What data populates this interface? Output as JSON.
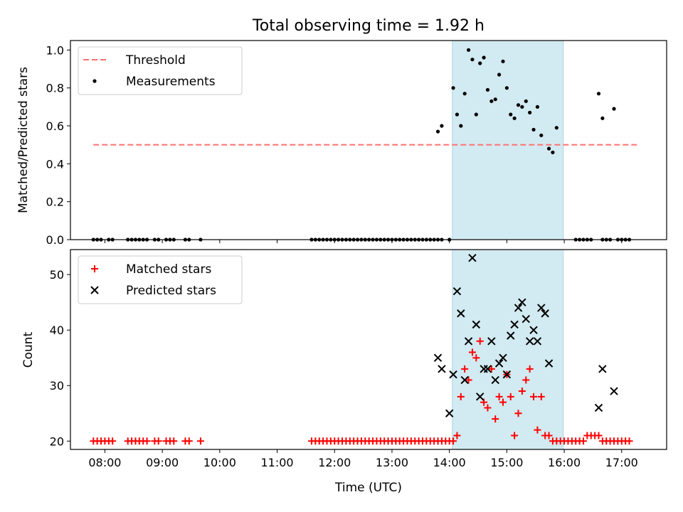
{
  "figure": {
    "title": "Total observing time = 1.92 h",
    "x_tick_labels": [
      "08:00",
      "09:00",
      "10:00",
      "11:00",
      "12:00",
      "13:00",
      "14:00",
      "15:00",
      "16:00",
      "17:00"
    ],
    "colors": {
      "threshold": "#ff7070",
      "measurements": "#000000",
      "matched": "#ff0000",
      "predicted": "#000000",
      "highlight": "#add8e6"
    }
  },
  "chart_data": [
    {
      "type": "scatter",
      "xlabel": "",
      "ylabel": "Matched/Predicted stars",
      "xlim": [
        "07:24",
        "17:47"
      ],
      "ylim": [
        0,
        1.05
      ],
      "y_tick_labels": [
        "0.0",
        "0.2",
        "0.4",
        "0.6",
        "0.8",
        "1.0"
      ],
      "highlight_span": [
        "14:03",
        "15:59"
      ],
      "threshold": {
        "name": "Threshold",
        "y": 0.5,
        "x_range": [
          "07:48",
          "17:17"
        ]
      },
      "legend": {
        "location": "top-left",
        "entries": [
          "Threshold",
          "Measurements"
        ]
      },
      "series": [
        {
          "name": "Measurements",
          "points": [
            [
              "07:48",
              0
            ],
            [
              "07:52",
              0
            ],
            [
              "07:56",
              0
            ],
            [
              "08:04",
              0
            ],
            [
              "08:08",
              0
            ],
            [
              "08:24",
              0
            ],
            [
              "08:28",
              0
            ],
            [
              "08:32",
              0
            ],
            [
              "08:36",
              0
            ],
            [
              "08:40",
              0
            ],
            [
              "08:44",
              0
            ],
            [
              "08:52",
              0
            ],
            [
              "08:56",
              0
            ],
            [
              "09:04",
              0
            ],
            [
              "09:08",
              0
            ],
            [
              "09:12",
              0
            ],
            [
              "09:24",
              0
            ],
            [
              "09:28",
              0
            ],
            [
              "09:40",
              0
            ],
            [
              "11:36",
              0
            ],
            [
              "11:40",
              0
            ],
            [
              "11:44",
              0
            ],
            [
              "11:48",
              0
            ],
            [
              "11:52",
              0
            ],
            [
              "11:56",
              0
            ],
            [
              "12:00",
              0
            ],
            [
              "12:04",
              0
            ],
            [
              "12:08",
              0
            ],
            [
              "12:12",
              0
            ],
            [
              "12:16",
              0
            ],
            [
              "12:20",
              0
            ],
            [
              "12:24",
              0
            ],
            [
              "12:28",
              0
            ],
            [
              "12:32",
              0
            ],
            [
              "12:36",
              0
            ],
            [
              "12:40",
              0
            ],
            [
              "12:44",
              0
            ],
            [
              "12:48",
              0
            ],
            [
              "12:52",
              0
            ],
            [
              "12:56",
              0
            ],
            [
              "13:00",
              0
            ],
            [
              "13:04",
              0
            ],
            [
              "13:08",
              0
            ],
            [
              "13:12",
              0
            ],
            [
              "13:16",
              0
            ],
            [
              "13:20",
              0
            ],
            [
              "13:24",
              0
            ],
            [
              "13:28",
              0
            ],
            [
              "13:32",
              0
            ],
            [
              "13:36",
              0
            ],
            [
              "13:40",
              0
            ],
            [
              "13:44",
              0
            ],
            [
              "13:48",
              0
            ],
            [
              "13:52",
              0
            ],
            [
              "14:00",
              0
            ],
            [
              "13:48",
              0.57
            ],
            [
              "13:52",
              0.6
            ],
            [
              "14:04",
              0.8
            ],
            [
              "14:08",
              0.66
            ],
            [
              "14:12",
              0.6
            ],
            [
              "14:16",
              0.77
            ],
            [
              "14:20",
              1.0
            ],
            [
              "14:24",
              0.95
            ],
            [
              "14:28",
              0.66
            ],
            [
              "14:32",
              0.93
            ],
            [
              "14:36",
              0.96
            ],
            [
              "14:40",
              0.79
            ],
            [
              "14:44",
              0.73
            ],
            [
              "14:48",
              0.74
            ],
            [
              "14:52",
              0.87
            ],
            [
              "14:56",
              0.94
            ],
            [
              "15:00",
              0.8
            ],
            [
              "15:04",
              0.66
            ],
            [
              "15:08",
              0.64
            ],
            [
              "15:12",
              0.71
            ],
            [
              "15:16",
              0.7
            ],
            [
              "15:20",
              0.73
            ],
            [
              "15:24",
              0.67
            ],
            [
              "15:28",
              0.58
            ],
            [
              "15:32",
              0.7
            ],
            [
              "15:36",
              0.55
            ],
            [
              "15:44",
              0.48
            ],
            [
              "15:48",
              0.46
            ],
            [
              "15:52",
              0.59
            ],
            [
              "16:12",
              0
            ],
            [
              "16:16",
              0
            ],
            [
              "16:20",
              0
            ],
            [
              "16:24",
              0
            ],
            [
              "16:28",
              0
            ],
            [
              "16:36",
              0.77
            ],
            [
              "16:40",
              0.64
            ],
            [
              "16:52",
              0.69
            ],
            [
              "16:40",
              0
            ],
            [
              "16:44",
              0
            ],
            [
              "16:48",
              0
            ],
            [
              "16:56",
              0
            ],
            [
              "17:00",
              0
            ],
            [
              "17:04",
              0
            ],
            [
              "17:08",
              0
            ]
          ]
        }
      ]
    },
    {
      "type": "scatter",
      "xlabel": "Time (UTC)",
      "ylabel": "Count",
      "xlim": [
        "07:24",
        "17:47"
      ],
      "ylim": [
        18.5,
        54.5
      ],
      "y_tick_labels": [
        "20",
        "30",
        "40",
        "50"
      ],
      "highlight_span": [
        "14:03",
        "15:59"
      ],
      "legend": {
        "location": "top-left",
        "entries": [
          "Matched stars",
          "Predicted stars"
        ]
      },
      "series": [
        {
          "name": "Matched stars",
          "marker": "plus",
          "points": [
            [
              "07:48",
              20
            ],
            [
              "07:52",
              20
            ],
            [
              "07:56",
              20
            ],
            [
              "08:00",
              20
            ],
            [
              "08:04",
              20
            ],
            [
              "08:08",
              20
            ],
            [
              "08:24",
              20
            ],
            [
              "08:28",
              20
            ],
            [
              "08:32",
              20
            ],
            [
              "08:36",
              20
            ],
            [
              "08:40",
              20
            ],
            [
              "08:44",
              20
            ],
            [
              "08:52",
              20
            ],
            [
              "08:56",
              20
            ],
            [
              "09:04",
              20
            ],
            [
              "09:08",
              20
            ],
            [
              "09:12",
              20
            ],
            [
              "09:24",
              20
            ],
            [
              "09:28",
              20
            ],
            [
              "09:40",
              20
            ],
            [
              "11:36",
              20
            ],
            [
              "11:40",
              20
            ],
            [
              "11:44",
              20
            ],
            [
              "11:48",
              20
            ],
            [
              "11:52",
              20
            ],
            [
              "11:56",
              20
            ],
            [
              "12:00",
              20
            ],
            [
              "12:04",
              20
            ],
            [
              "12:08",
              20
            ],
            [
              "12:12",
              20
            ],
            [
              "12:16",
              20
            ],
            [
              "12:20",
              20
            ],
            [
              "12:24",
              20
            ],
            [
              "12:28",
              20
            ],
            [
              "12:32",
              20
            ],
            [
              "12:36",
              20
            ],
            [
              "12:40",
              20
            ],
            [
              "12:44",
              20
            ],
            [
              "12:48",
              20
            ],
            [
              "12:52",
              20
            ],
            [
              "12:56",
              20
            ],
            [
              "13:00",
              20
            ],
            [
              "13:04",
              20
            ],
            [
              "13:08",
              20
            ],
            [
              "13:12",
              20
            ],
            [
              "13:16",
              20
            ],
            [
              "13:20",
              20
            ],
            [
              "13:24",
              20
            ],
            [
              "13:28",
              20
            ],
            [
              "13:32",
              20
            ],
            [
              "13:36",
              20
            ],
            [
              "13:40",
              20
            ],
            [
              "13:44",
              20
            ],
            [
              "13:48",
              20
            ],
            [
              "13:52",
              20
            ],
            [
              "13:56",
              20
            ],
            [
              "14:00",
              20
            ],
            [
              "14:04",
              20
            ],
            [
              "14:08",
              21
            ],
            [
              "14:12",
              28
            ],
            [
              "14:16",
              33
            ],
            [
              "14:20",
              31
            ],
            [
              "14:24",
              36
            ],
            [
              "14:28",
              35
            ],
            [
              "14:32",
              38
            ],
            [
              "14:36",
              27
            ],
            [
              "14:40",
              26
            ],
            [
              "14:44",
              33
            ],
            [
              "14:48",
              24
            ],
            [
              "14:52",
              28
            ],
            [
              "14:56",
              27
            ],
            [
              "15:00",
              32
            ],
            [
              "15:04",
              28
            ],
            [
              "15:08",
              21
            ],
            [
              "15:12",
              25
            ],
            [
              "15:16",
              29
            ],
            [
              "15:20",
              31
            ],
            [
              "15:24",
              33
            ],
            [
              "15:28",
              28
            ],
            [
              "15:32",
              22
            ],
            [
              "15:36",
              28
            ],
            [
              "15:40",
              21
            ],
            [
              "15:44",
              21
            ],
            [
              "15:48",
              20
            ],
            [
              "15:52",
              20
            ],
            [
              "15:56",
              20
            ],
            [
              "16:00",
              20
            ],
            [
              "16:04",
              20
            ],
            [
              "16:08",
              20
            ],
            [
              "16:12",
              20
            ],
            [
              "16:16",
              20
            ],
            [
              "16:20",
              20
            ],
            [
              "16:24",
              21
            ],
            [
              "16:28",
              21
            ],
            [
              "16:32",
              21
            ],
            [
              "16:36",
              21
            ],
            [
              "16:40",
              20
            ],
            [
              "16:44",
              20
            ],
            [
              "16:48",
              20
            ],
            [
              "16:52",
              20
            ],
            [
              "16:56",
              20
            ],
            [
              "17:00",
              20
            ],
            [
              "17:04",
              20
            ],
            [
              "17:08",
              20
            ]
          ]
        },
        {
          "name": "Predicted stars",
          "marker": "x",
          "points": [
            [
              "13:48",
              35
            ],
            [
              "13:52",
              33
            ],
            [
              "14:00",
              25
            ],
            [
              "14:04",
              32
            ],
            [
              "14:08",
              47
            ],
            [
              "14:12",
              43
            ],
            [
              "14:16",
              31
            ],
            [
              "14:20",
              38
            ],
            [
              "14:24",
              53
            ],
            [
              "14:28",
              41
            ],
            [
              "14:32",
              28
            ],
            [
              "14:36",
              33
            ],
            [
              "14:40",
              33
            ],
            [
              "14:44",
              38
            ],
            [
              "14:48",
              31
            ],
            [
              "14:52",
              34
            ],
            [
              "14:56",
              35
            ],
            [
              "15:00",
              32
            ],
            [
              "15:04",
              39
            ],
            [
              "15:08",
              41
            ],
            [
              "15:12",
              44
            ],
            [
              "15:16",
              45
            ],
            [
              "15:20",
              42
            ],
            [
              "15:24",
              38
            ],
            [
              "15:28",
              40
            ],
            [
              "15:32",
              38
            ],
            [
              "15:36",
              44
            ],
            [
              "15:40",
              43
            ],
            [
              "15:44",
              34
            ],
            [
              "16:36",
              26
            ],
            [
              "16:40",
              33
            ],
            [
              "16:52",
              29
            ]
          ]
        }
      ]
    }
  ]
}
